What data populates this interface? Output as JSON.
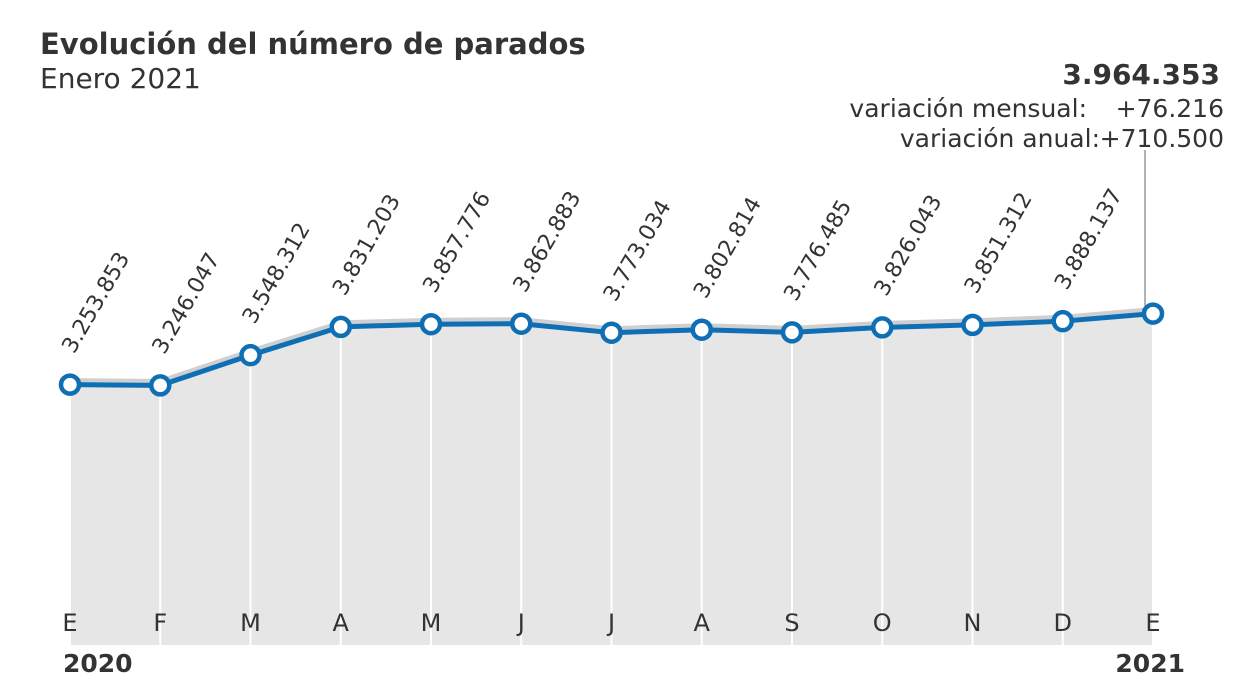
{
  "chart_data": {
    "type": "line",
    "title": "Evolución del número de parados",
    "subtitle": "Enero 2021",
    "categories": [
      "E",
      "F",
      "M",
      "A",
      "M",
      "J",
      "J",
      "A",
      "S",
      "O",
      "N",
      "D",
      "E"
    ],
    "values": [
      3253853,
      3246047,
      3548312,
      3831203,
      3857776,
      3862883,
      3773034,
      3802814,
      3776485,
      3826043,
      3851312,
      3888137,
      3964353
    ],
    "value_labels": [
      "3.253.853",
      "3.246.047",
      "3.548.312",
      "3.831.203",
      "3.857.776",
      "3.862.883",
      "3.773.034",
      "3.802.814",
      "3.776.485",
      "3.826.043",
      "3.851.312",
      "3.888.137",
      "3.964.353"
    ],
    "color": "#0f6fb5",
    "area_color": "#e6e6e6",
    "ylim": [
      650000,
      4500000
    ],
    "year_labels": [
      "2020",
      "2021"
    ],
    "annotations": [
      {
        "label": "variación mensual:",
        "value": "+76.216"
      },
      {
        "label": "variación anual:",
        "value": "+710.500"
      }
    ]
  }
}
